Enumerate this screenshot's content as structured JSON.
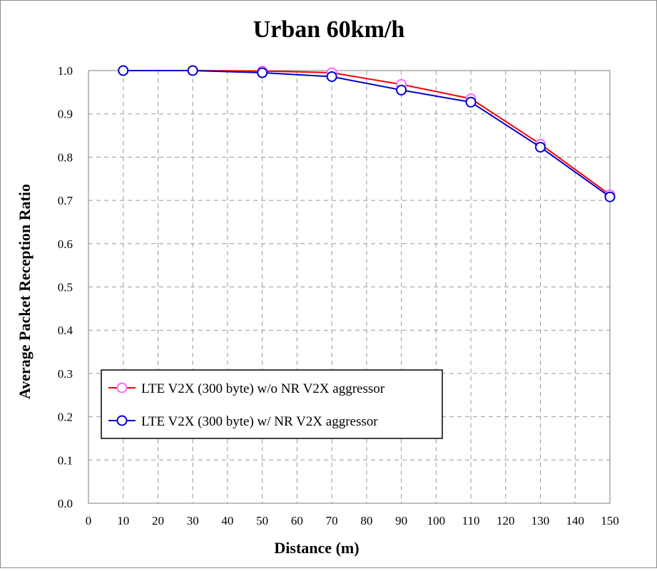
{
  "chart_data": {
    "type": "line",
    "title": "Urban 60km/h",
    "xlabel": "Distance (m)",
    "ylabel": "Average Packet Reception Ratio",
    "xlim": [
      0,
      150
    ],
    "ylim": [
      0.0,
      1.0
    ],
    "x_ticks": [
      "0",
      "10",
      "20",
      "30",
      "40",
      "50",
      "60",
      "70",
      "80",
      "90",
      "100",
      "110",
      "120",
      "130",
      "140",
      "150"
    ],
    "y_ticks": [
      "0.0",
      "0.1",
      "0.2",
      "0.3",
      "0.4",
      "0.5",
      "0.6",
      "0.7",
      "0.8",
      "0.9",
      "1.0"
    ],
    "x": [
      10,
      30,
      50,
      70,
      90,
      110,
      130,
      150
    ],
    "grid": true,
    "legend_position": "lower-left",
    "series": [
      {
        "name": "LTE V2X (300 byte) w/o NR V2X aggressor",
        "values": [
          1.0,
          1.0,
          0.999,
          0.995,
          0.968,
          0.935,
          0.83,
          0.713
        ],
        "line_color": "#ff0000",
        "marker_color": "#ff66ff"
      },
      {
        "name": "LTE V2X (300 byte) w/ NR V2X aggressor",
        "values": [
          1.0,
          1.0,
          0.995,
          0.986,
          0.955,
          0.927,
          0.823,
          0.708
        ],
        "line_color": "#0000cc",
        "marker_color": "#0000cc"
      }
    ]
  }
}
